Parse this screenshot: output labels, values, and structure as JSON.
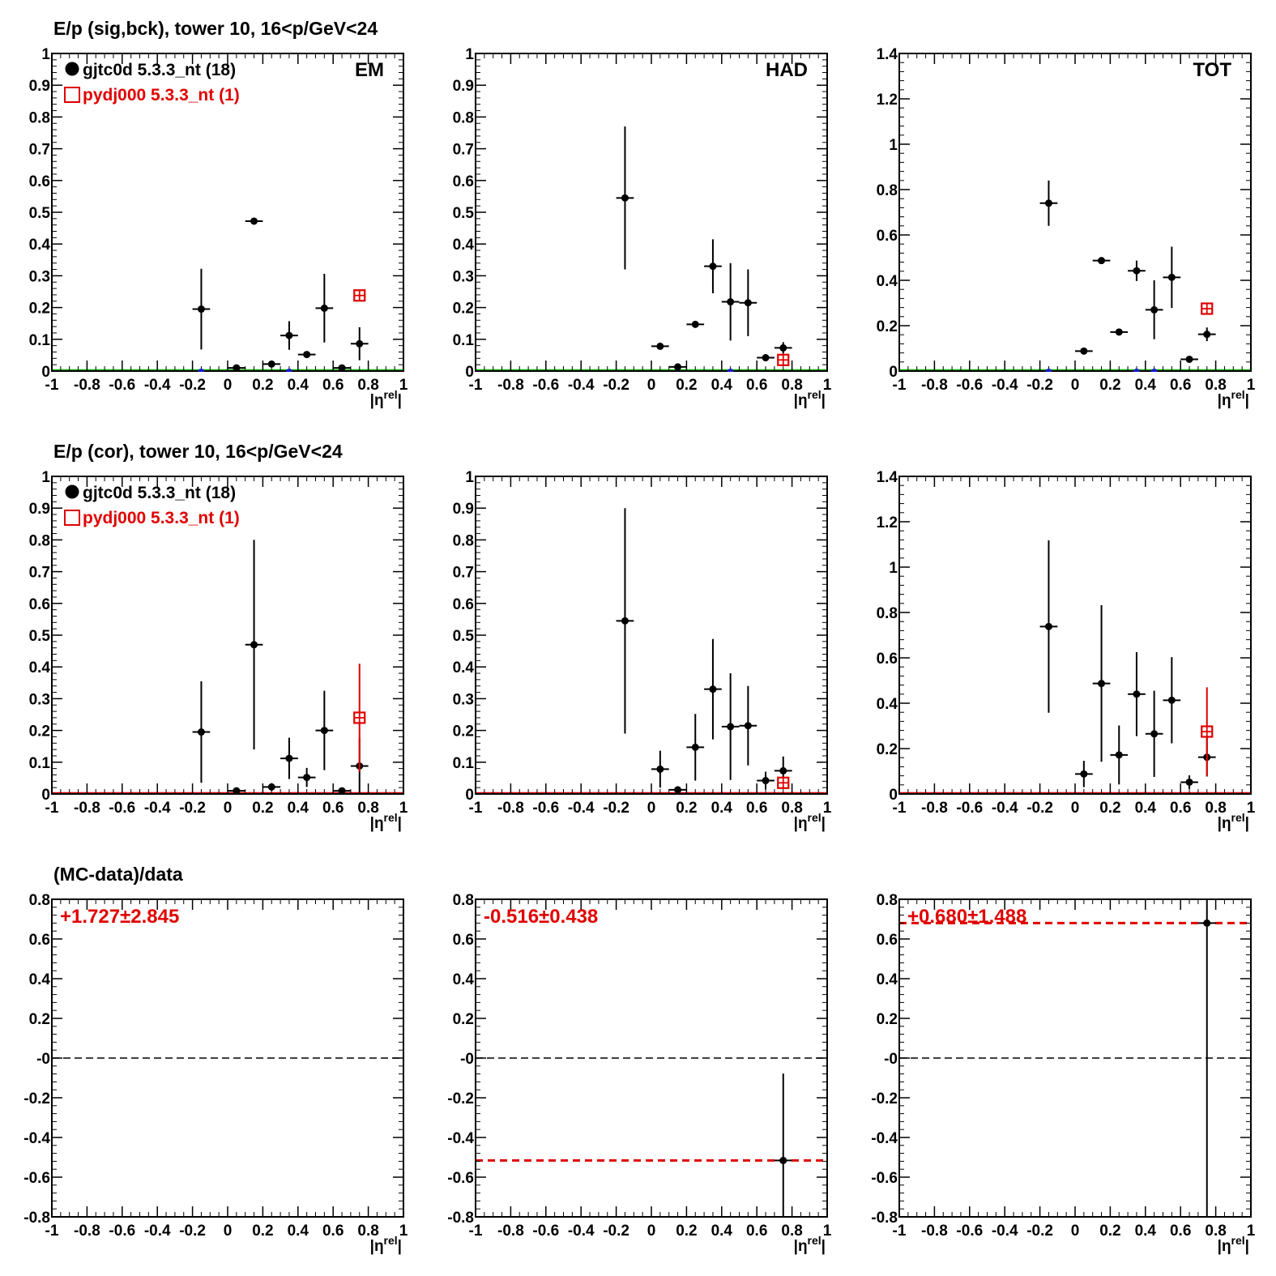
{
  "row_titles": [
    "E/p (sig,bck), tower 10, 16<p/GeV<24",
    "E/p (cor), tower 10, 16<p/GeV<24",
    "(MC-data)/data"
  ],
  "xlabel": "|η<sup>rel</sup>|",
  "colors": {
    "data": "#000000",
    "mc": "#e00000",
    "zero_green": "#00bb00",
    "zero_red": "#e00000",
    "blue_marker": "#1a1acc"
  },
  "legend": {
    "data": "gjtc0d 5.3.3_nt (18)",
    "mc": "pydj000 5.3.3_nt (1)"
  },
  "chart_data": [
    {
      "type": "scatter",
      "row": 0,
      "col": 0,
      "panel_label": "EM",
      "xlim": [
        -1,
        1
      ],
      "ylim": [
        0,
        1
      ],
      "yticks": [
        "0",
        "0.1",
        "0.2",
        "0.3",
        "0.4",
        "0.5",
        "0.6",
        "0.7",
        "0.8",
        "0.9",
        "1"
      ],
      "xticks": [
        "-1",
        "-0.8",
        "-0.6",
        "-0.4",
        "-0.2",
        "0",
        "0.2",
        "0.4",
        "0.6",
        "0.8",
        "1"
      ],
      "zero_line": "green",
      "legend": true,
      "series": [
        {
          "kind": "data",
          "points": [
            {
              "x": -0.15,
              "y": 0.195,
              "err": 0.127
            },
            {
              "x": 0.05,
              "y": 0.01,
              "err": 0
            },
            {
              "x": 0.15,
              "y": 0.472,
              "err": 0
            },
            {
              "x": 0.25,
              "y": 0.022,
              "err": 0
            },
            {
              "x": 0.35,
              "y": 0.112,
              "err": 0.045
            },
            {
              "x": 0.45,
              "y": 0.052,
              "err": 0
            },
            {
              "x": 0.55,
              "y": 0.198,
              "err": 0.108
            },
            {
              "x": 0.65,
              "y": 0.01,
              "err": 0
            },
            {
              "x": 0.75,
              "y": 0.086,
              "err": 0.052
            }
          ]
        },
        {
          "kind": "mc",
          "points": [
            {
              "x": 0.75,
              "y": 0.238,
              "err": 0
            }
          ]
        },
        {
          "kind": "blue",
          "points": [
            {
              "x": -0.15,
              "y": 0
            },
            {
              "x": 0.35,
              "y": 0
            }
          ]
        }
      ]
    },
    {
      "type": "scatter",
      "row": 0,
      "col": 1,
      "panel_label": "HAD",
      "xlim": [
        -1,
        1
      ],
      "ylim": [
        0,
        1
      ],
      "yticks": [
        "0",
        "0.1",
        "0.2",
        "0.3",
        "0.4",
        "0.5",
        "0.6",
        "0.7",
        "0.8",
        "0.9",
        "1"
      ],
      "xticks": [
        "-1",
        "-0.8",
        "-0.6",
        "-0.4",
        "-0.2",
        "0",
        "0.2",
        "0.4",
        "0.6",
        "0.8",
        "1"
      ],
      "zero_line": "green",
      "legend": false,
      "series": [
        {
          "kind": "data",
          "points": [
            {
              "x": -0.15,
              "y": 0.545,
              "err": 0.225
            },
            {
              "x": 0.05,
              "y": 0.078,
              "err": 0
            },
            {
              "x": 0.15,
              "y": 0.013,
              "err": 0
            },
            {
              "x": 0.25,
              "y": 0.147,
              "err": 0
            },
            {
              "x": 0.35,
              "y": 0.33,
              "err": 0.085
            },
            {
              "x": 0.45,
              "y": 0.218,
              "err": 0.122
            },
            {
              "x": 0.55,
              "y": 0.215,
              "err": 0.105
            },
            {
              "x": 0.65,
              "y": 0.042,
              "err": 0
            },
            {
              "x": 0.75,
              "y": 0.073,
              "err": 0.018
            }
          ]
        },
        {
          "kind": "mc",
          "points": [
            {
              "x": 0.75,
              "y": 0.035,
              "err": 0
            }
          ]
        },
        {
          "kind": "blue",
          "points": [
            {
              "x": 0.45,
              "y": 0
            }
          ]
        }
      ]
    },
    {
      "type": "scatter",
      "row": 0,
      "col": 2,
      "panel_label": "TOT",
      "xlim": [
        -1,
        1
      ],
      "ylim": [
        0,
        1.4
      ],
      "yticks": [
        "0",
        "0.2",
        "0.4",
        "0.6",
        "0.8",
        "1",
        "1.2",
        "1.4"
      ],
      "xticks": [
        "-1",
        "-0.8",
        "-0.6",
        "-0.4",
        "-0.2",
        "0",
        "0.2",
        "0.4",
        "0.6",
        "0.8",
        "1"
      ],
      "zero_line": "green",
      "legend": false,
      "series": [
        {
          "kind": "data",
          "points": [
            {
              "x": -0.15,
              "y": 0.74,
              "err": 0.1
            },
            {
              "x": 0.05,
              "y": 0.088,
              "err": 0
            },
            {
              "x": 0.15,
              "y": 0.487,
              "err": 0
            },
            {
              "x": 0.25,
              "y": 0.172,
              "err": 0
            },
            {
              "x": 0.35,
              "y": 0.442,
              "err": 0.045
            },
            {
              "x": 0.45,
              "y": 0.27,
              "err": 0.13
            },
            {
              "x": 0.55,
              "y": 0.413,
              "err": 0.135
            },
            {
              "x": 0.65,
              "y": 0.052,
              "err": 0
            },
            {
              "x": 0.75,
              "y": 0.162,
              "err": 0.03
            }
          ]
        },
        {
          "kind": "mc",
          "points": [
            {
              "x": 0.75,
              "y": 0.275,
              "err": 0
            }
          ]
        },
        {
          "kind": "blue",
          "points": [
            {
              "x": -0.15,
              "y": 0
            },
            {
              "x": 0.35,
              "y": 0
            },
            {
              "x": 0.45,
              "y": 0
            }
          ]
        }
      ]
    },
    {
      "type": "scatter",
      "row": 1,
      "col": 0,
      "panel_label": "",
      "xlim": [
        -1,
        1
      ],
      "ylim": [
        0,
        1
      ],
      "yticks": [
        "0",
        "0.1",
        "0.2",
        "0.3",
        "0.4",
        "0.5",
        "0.6",
        "0.7",
        "0.8",
        "0.9",
        "1"
      ],
      "xticks": [
        "-1",
        "-0.8",
        "-0.6",
        "-0.4",
        "-0.2",
        "0",
        "0.2",
        "0.4",
        "0.6",
        "0.8",
        "1"
      ],
      "zero_line": "red",
      "legend": true,
      "series": [
        {
          "kind": "data",
          "points": [
            {
              "x": -0.15,
              "y": 0.195,
              "err": 0.16
            },
            {
              "x": 0.05,
              "y": 0.01,
              "err": 0
            },
            {
              "x": 0.15,
              "y": 0.47,
              "err": 0.33
            },
            {
              "x": 0.25,
              "y": 0.022,
              "err": 0.012
            },
            {
              "x": 0.35,
              "y": 0.112,
              "err": 0.065
            },
            {
              "x": 0.45,
              "y": 0.052,
              "err": 0.03
            },
            {
              "x": 0.55,
              "y": 0.2,
              "err": 0.125
            },
            {
              "x": 0.65,
              "y": 0.01,
              "err": 0
            },
            {
              "x": 0.75,
              "y": 0.088,
              "err": 0.088
            }
          ]
        },
        {
          "kind": "mc",
          "points": [
            {
              "x": 0.75,
              "y": 0.24,
              "err": 0.17
            }
          ]
        }
      ]
    },
    {
      "type": "scatter",
      "row": 1,
      "col": 1,
      "panel_label": "",
      "xlim": [
        -1,
        1
      ],
      "ylim": [
        0,
        1
      ],
      "yticks": [
        "0",
        "0.1",
        "0.2",
        "0.3",
        "0.4",
        "0.5",
        "0.6",
        "0.7",
        "0.8",
        "0.9",
        "1"
      ],
      "xticks": [
        "-1",
        "-0.8",
        "-0.6",
        "-0.4",
        "-0.2",
        "0",
        "0.2",
        "0.4",
        "0.6",
        "0.8",
        "1"
      ],
      "zero_line": "red",
      "legend": false,
      "series": [
        {
          "kind": "data",
          "points": [
            {
              "x": -0.15,
              "y": 0.545,
              "err": 0.355
            },
            {
              "x": 0.05,
              "y": 0.078,
              "err": 0.058
            },
            {
              "x": 0.15,
              "y": 0.013,
              "err": 0
            },
            {
              "x": 0.25,
              "y": 0.147,
              "err": 0.105
            },
            {
              "x": 0.35,
              "y": 0.33,
              "err": 0.158
            },
            {
              "x": 0.45,
              "y": 0.212,
              "err": 0.168
            },
            {
              "x": 0.55,
              "y": 0.215,
              "err": 0.125
            },
            {
              "x": 0.65,
              "y": 0.042,
              "err": 0.028
            },
            {
              "x": 0.75,
              "y": 0.073,
              "err": 0.045
            }
          ]
        },
        {
          "kind": "mc",
          "points": [
            {
              "x": 0.75,
              "y": 0.035,
              "err": 0
            }
          ]
        }
      ]
    },
    {
      "type": "scatter",
      "row": 1,
      "col": 2,
      "panel_label": "",
      "xlim": [
        -1,
        1
      ],
      "ylim": [
        0,
        1.4
      ],
      "yticks": [
        "0",
        "0.2",
        "0.4",
        "0.6",
        "0.8",
        "1",
        "1.2",
        "1.4"
      ],
      "xticks": [
        "-1",
        "-0.8",
        "-0.6",
        "-0.4",
        "-0.2",
        "0",
        "0.2",
        "0.4",
        "0.6",
        "0.8",
        "1"
      ],
      "zero_line": "red",
      "legend": false,
      "series": [
        {
          "kind": "data",
          "points": [
            {
              "x": -0.15,
              "y": 0.738,
              "err": 0.38
            },
            {
              "x": 0.05,
              "y": 0.088,
              "err": 0.058
            },
            {
              "x": 0.15,
              "y": 0.487,
              "err": 0.345
            },
            {
              "x": 0.25,
              "y": 0.172,
              "err": 0.13
            },
            {
              "x": 0.35,
              "y": 0.44,
              "err": 0.185
            },
            {
              "x": 0.45,
              "y": 0.265,
              "err": 0.19
            },
            {
              "x": 0.55,
              "y": 0.413,
              "err": 0.19
            },
            {
              "x": 0.65,
              "y": 0.052,
              "err": 0.03
            },
            {
              "x": 0.75,
              "y": 0.162,
              "err": 0.085
            }
          ]
        },
        {
          "kind": "mc",
          "points": [
            {
              "x": 0.75,
              "y": 0.275,
              "err": 0.195
            }
          ]
        }
      ]
    },
    {
      "type": "scatter",
      "row": 2,
      "col": 0,
      "panel_label": "",
      "xlim": [
        -1,
        1
      ],
      "ylim": [
        -0.8,
        0.8
      ],
      "yticks": [
        "-0.8",
        "-0.6",
        "-0.4",
        "-0.2",
        "-0",
        "0.2",
        "0.4",
        "0.6",
        "0.8"
      ],
      "xticks": [
        "-1",
        "-0.8",
        "-0.6",
        "-0.4",
        "-0.2",
        "0",
        "0.2",
        "0.4",
        "0.6",
        "0.8",
        "1"
      ],
      "zero_line": "dashed_black",
      "legend": false,
      "fit_text": "+1.727±2.845",
      "fit_value": null,
      "series": []
    },
    {
      "type": "scatter",
      "row": 2,
      "col": 1,
      "panel_label": "",
      "xlim": [
        -1,
        1
      ],
      "ylim": [
        -0.8,
        0.8
      ],
      "yticks": [
        "-0.8",
        "-0.6",
        "-0.4",
        "-0.2",
        "-0",
        "0.2",
        "0.4",
        "0.6",
        "0.8"
      ],
      "xticks": [
        "-1",
        "-0.8",
        "-0.6",
        "-0.4",
        "-0.2",
        "0",
        "0.2",
        "0.4",
        "0.6",
        "0.8",
        "1"
      ],
      "zero_line": "dashed_black",
      "legend": false,
      "fit_text": "-0.516±0.438",
      "fit_value": -0.516,
      "series": [
        {
          "kind": "data",
          "points": [
            {
              "x": 0.75,
              "y": -0.516,
              "err": 0.438
            }
          ]
        }
      ]
    },
    {
      "type": "scatter",
      "row": 2,
      "col": 2,
      "panel_label": "",
      "xlim": [
        -1,
        1
      ],
      "ylim": [
        -0.8,
        0.8
      ],
      "yticks": [
        "-0.8",
        "-0.6",
        "-0.4",
        "-0.2",
        "-0",
        "0.2",
        "0.4",
        "0.6",
        "0.8"
      ],
      "xticks": [
        "-1",
        "-0.8",
        "-0.6",
        "-0.4",
        "-0.2",
        "0",
        "0.2",
        "0.4",
        "0.6",
        "0.8",
        "1"
      ],
      "zero_line": "dashed_black",
      "legend": false,
      "fit_text": "+0.680±1.488",
      "fit_value": 0.68,
      "series": [
        {
          "kind": "data",
          "points": [
            {
              "x": 0.75,
              "y": 0.68,
              "err": 1.488
            }
          ]
        }
      ]
    }
  ]
}
